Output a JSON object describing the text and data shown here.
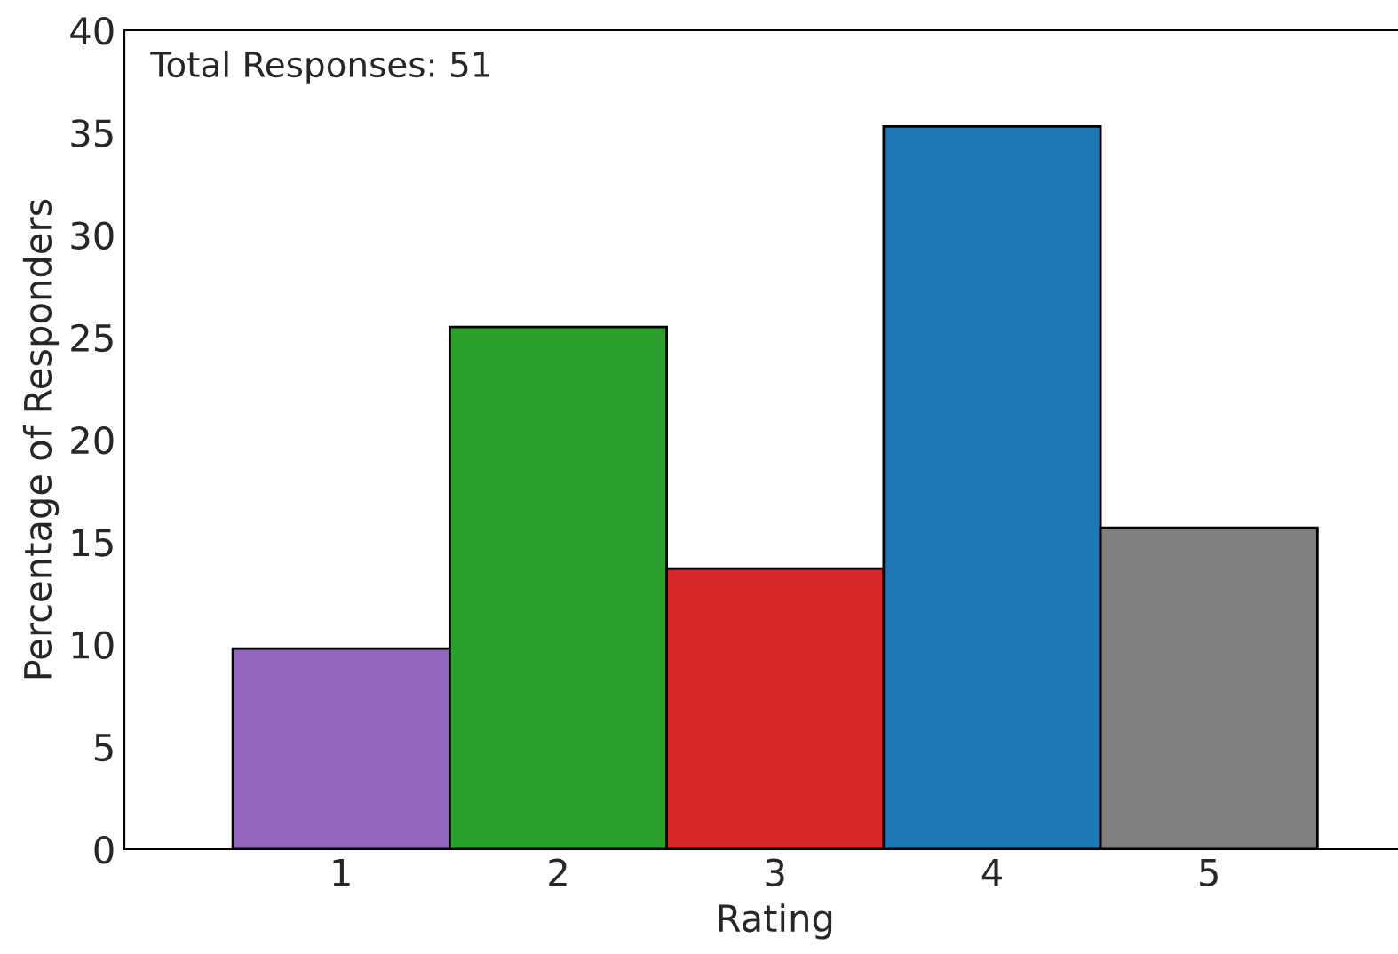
{
  "chart_data": {
    "type": "bar",
    "xlabel": "Rating",
    "ylabel": "Percentage of Responders",
    "categories": [
      "1",
      "2",
      "3",
      "4",
      "5"
    ],
    "values": [
      9.8,
      25.5,
      13.7,
      35.3,
      15.7
    ],
    "colors": [
      "#9467bd",
      "#2ca02c",
      "#d62728",
      "#1f77b4",
      "#7f7f7f"
    ],
    "ylim": [
      0,
      40
    ],
    "yticks": [
      0,
      5,
      10,
      15,
      20,
      25,
      30,
      35,
      40
    ],
    "grid": false,
    "annotations": [
      "Total Responses: 51"
    ]
  }
}
